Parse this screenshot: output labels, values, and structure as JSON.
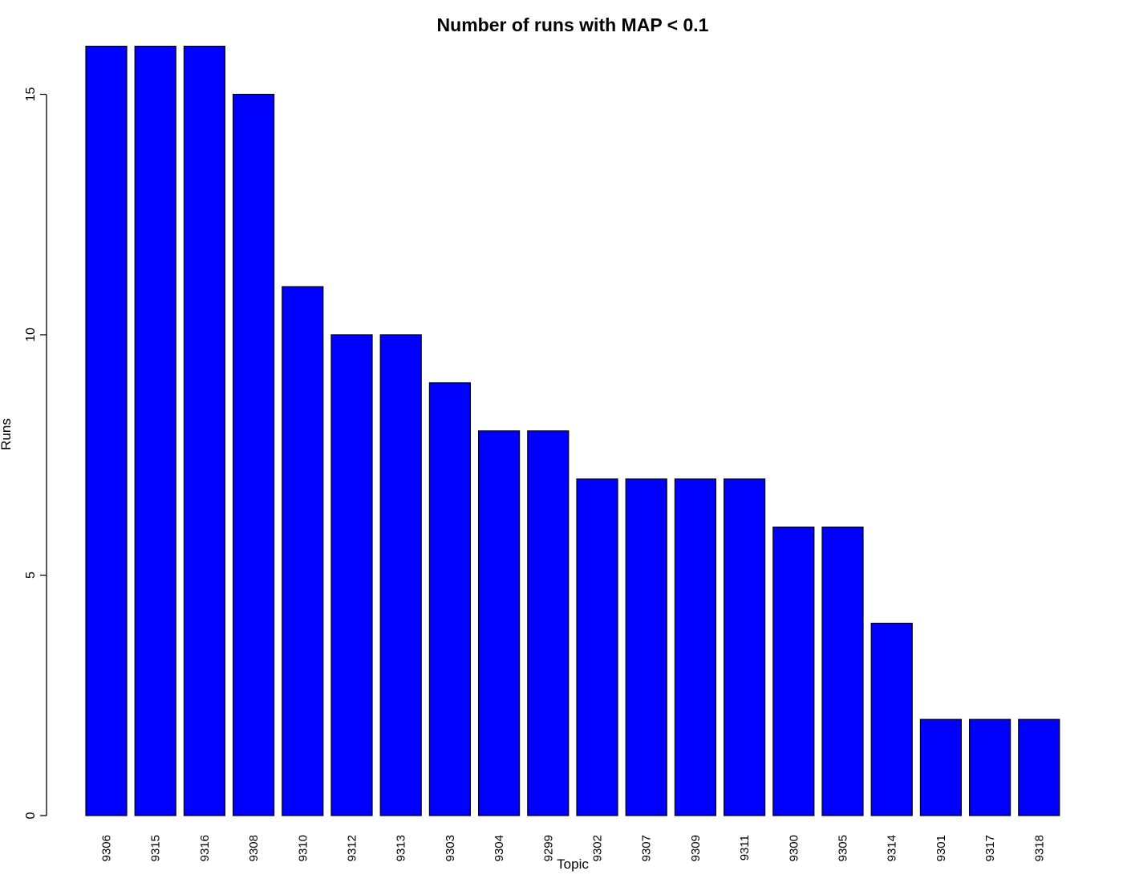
{
  "chart_data": {
    "type": "bar",
    "title": "Number of runs with MAP < 0.1",
    "xlabel": "Topic",
    "ylabel": "Runs",
    "categories": [
      "9306",
      "9315",
      "9316",
      "9308",
      "9310",
      "9312",
      "9313",
      "9303",
      "9304",
      "9299",
      "9302",
      "9307",
      "9309",
      "9311",
      "9300",
      "9305",
      "9314",
      "9301",
      "9317",
      "9318"
    ],
    "values": [
      16,
      16,
      16,
      15,
      11,
      10,
      10,
      9,
      8,
      8,
      7,
      7,
      7,
      7,
      6,
      6,
      4,
      2,
      2,
      2
    ],
    "ylim": [
      0,
      16
    ],
    "yticks": [
      0,
      5,
      10,
      15
    ],
    "bar_color": "#0000ff",
    "grid": false,
    "legend": "none"
  }
}
